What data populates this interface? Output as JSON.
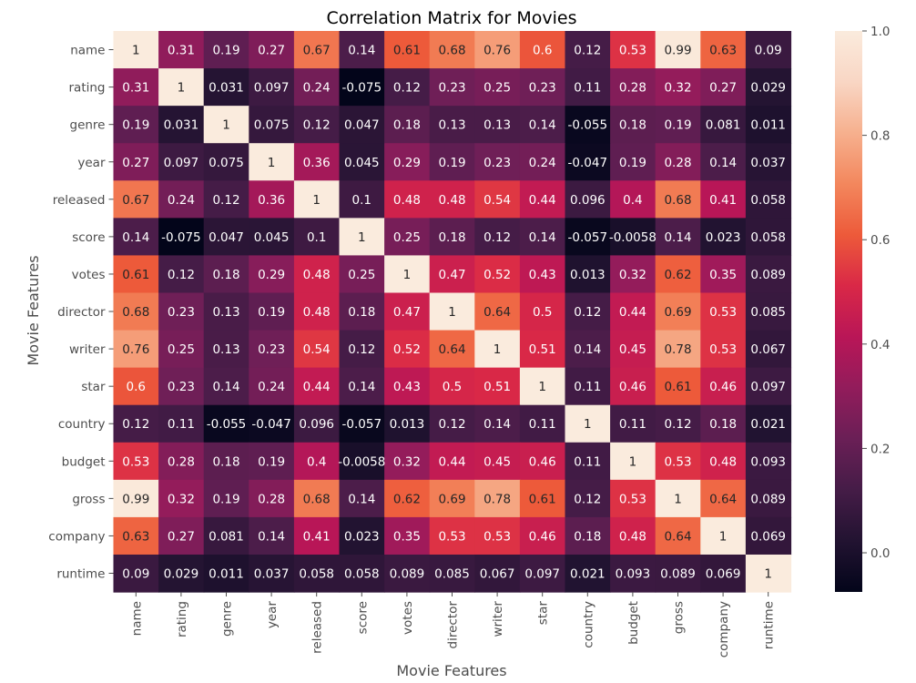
{
  "chart_data": {
    "type": "heatmap",
    "title": "Correlation Matrix for Movies",
    "xlabel": "Movie Features",
    "ylabel": "Movie Features",
    "categories": [
      "name",
      "rating",
      "genre",
      "year",
      "released",
      "score",
      "votes",
      "director",
      "writer",
      "star",
      "country",
      "budget",
      "gross",
      "company",
      "runtime"
    ],
    "values": [
      [
        "1",
        "0.31",
        "0.19",
        "0.27",
        "0.67",
        "0.14",
        "0.61",
        "0.68",
        "0.76",
        "0.6",
        "0.12",
        "0.53",
        "0.99",
        "0.63",
        "0.09"
      ],
      [
        "0.31",
        "1",
        "0.031",
        "0.097",
        "0.24",
        "-0.075",
        "0.12",
        "0.23",
        "0.25",
        "0.23",
        "0.11",
        "0.28",
        "0.32",
        "0.27",
        "0.029"
      ],
      [
        "0.19",
        "0.031",
        "1",
        "0.075",
        "0.12",
        "0.047",
        "0.18",
        "0.13",
        "0.13",
        "0.14",
        "-0.055",
        "0.18",
        "0.19",
        "0.081",
        "0.011"
      ],
      [
        "0.27",
        "0.097",
        "0.075",
        "1",
        "0.36",
        "0.045",
        "0.29",
        "0.19",
        "0.23",
        "0.24",
        "-0.047",
        "0.19",
        "0.28",
        "0.14",
        "0.037"
      ],
      [
        "0.67",
        "0.24",
        "0.12",
        "0.36",
        "1",
        "0.1",
        "0.48",
        "0.48",
        "0.54",
        "0.44",
        "0.096",
        "0.4",
        "0.68",
        "0.41",
        "0.058"
      ],
      [
        "0.14",
        "-0.075",
        "0.047",
        "0.045",
        "0.1",
        "1",
        "0.25",
        "0.18",
        "0.12",
        "0.14",
        "-0.057",
        "-0.0058",
        "0.14",
        "0.023",
        "0.058"
      ],
      [
        "0.61",
        "0.12",
        "0.18",
        "0.29",
        "0.48",
        "0.25",
        "1",
        "0.47",
        "0.52",
        "0.43",
        "0.013",
        "0.32",
        "0.62",
        "0.35",
        "0.089"
      ],
      [
        "0.68",
        "0.23",
        "0.13",
        "0.19",
        "0.48",
        "0.18",
        "0.47",
        "1",
        "0.64",
        "0.5",
        "0.12",
        "0.44",
        "0.69",
        "0.53",
        "0.085"
      ],
      [
        "0.76",
        "0.25",
        "0.13",
        "0.23",
        "0.54",
        "0.12",
        "0.52",
        "0.64",
        "1",
        "0.51",
        "0.14",
        "0.45",
        "0.78",
        "0.53",
        "0.067"
      ],
      [
        "0.6",
        "0.23",
        "0.14",
        "0.24",
        "0.44",
        "0.14",
        "0.43",
        "0.5",
        "0.51",
        "1",
        "0.11",
        "0.46",
        "0.61",
        "0.46",
        "0.097"
      ],
      [
        "0.12",
        "0.11",
        "-0.055",
        "-0.047",
        "0.096",
        "-0.057",
        "0.013",
        "0.12",
        "0.14",
        "0.11",
        "1",
        "0.11",
        "0.12",
        "0.18",
        "0.021"
      ],
      [
        "0.53",
        "0.28",
        "0.18",
        "0.19",
        "0.4",
        "-0.0058",
        "0.32",
        "0.44",
        "0.45",
        "0.46",
        "0.11",
        "1",
        "0.53",
        "0.48",
        "0.093"
      ],
      [
        "0.99",
        "0.32",
        "0.19",
        "0.28",
        "0.68",
        "0.14",
        "0.62",
        "0.69",
        "0.78",
        "0.61",
        "0.12",
        "0.53",
        "1",
        "0.64",
        "0.089"
      ],
      [
        "0.63",
        "0.27",
        "0.081",
        "0.14",
        "0.41",
        "0.023",
        "0.35",
        "0.53",
        "0.53",
        "0.46",
        "0.18",
        "0.48",
        "0.64",
        "1",
        "0.069"
      ],
      [
        "0.09",
        "0.029",
        "0.011",
        "0.037",
        "0.058",
        "0.058",
        "0.089",
        "0.085",
        "0.067",
        "0.097",
        "0.021",
        "0.093",
        "0.089",
        "0.069",
        "1"
      ]
    ],
    "colorbar": {
      "range": [
        -0.075,
        1.0
      ],
      "ticks": [
        "0.0",
        "0.2",
        "0.4",
        "0.6",
        "0.8",
        "1.0"
      ]
    },
    "colormap": [
      "#03051a",
      "#221331",
      "#451c47",
      "#6a1f56",
      "#921c5b",
      "#b91657",
      "#d92847",
      "#ed5a3a",
      "#f3875d",
      "#f6b08e",
      "#f9d6c4",
      "#faebdd"
    ],
    "grid": false
  }
}
